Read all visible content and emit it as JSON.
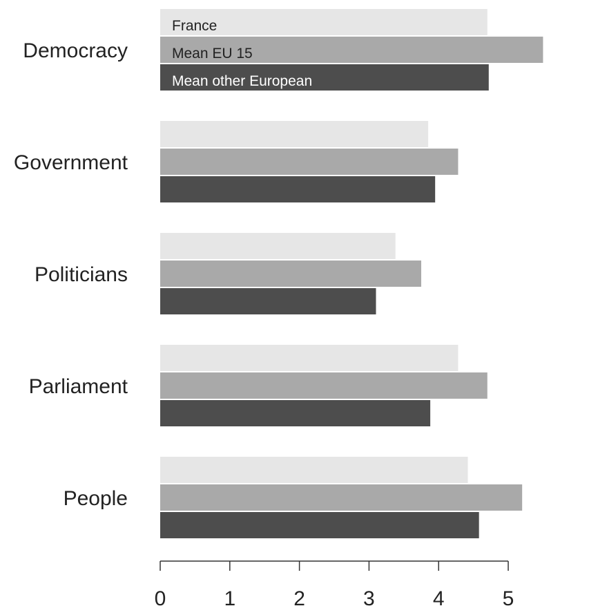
{
  "chart_data": {
    "type": "bar",
    "orientation": "horizontal",
    "categories": [
      "Democracy",
      "Government",
      "Politicians",
      "Parliament",
      "People"
    ],
    "series": [
      {
        "name": "France",
        "color": "#e6e6e6",
        "text_color": "#222222",
        "values": [
          4.7,
          3.85,
          3.38,
          4.28,
          4.42
        ]
      },
      {
        "name": "Mean EU 15",
        "color": "#a9a9a9",
        "text_color": "#222222",
        "values": [
          5.5,
          4.28,
          3.75,
          4.7,
          5.2
        ]
      },
      {
        "name": "Mean other European",
        "color": "#4d4d4d",
        "text_color": "#ffffff",
        "values": [
          4.72,
          3.95,
          3.1,
          3.88,
          4.58
        ]
      }
    ],
    "xticks": [
      "0",
      "1",
      "2",
      "3",
      "4",
      "5"
    ],
    "xlim": [
      0,
      5.5
    ],
    "legend": "inside-top",
    "grid": false,
    "title": "",
    "xlabel": "",
    "ylabel": ""
  }
}
